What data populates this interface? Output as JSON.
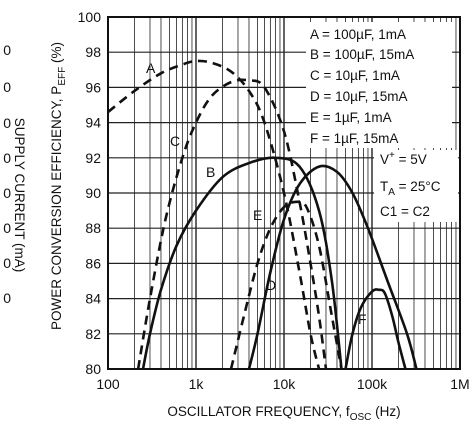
{
  "chart_data": {
    "type": "line",
    "xscale": "log",
    "xlim": [
      100,
      1000000
    ],
    "ylim": [
      80,
      100
    ],
    "xlabel": {
      "main": "OSCILLATOR FREQUENCY, f",
      "sub": "OSC",
      "unit": " (Hz)"
    },
    "ylabel": {
      "main": "POWER CONVERSION EFFICIENCY, P",
      "sub": "EFF",
      "unit": " (%)"
    },
    "x_tick_labels": [
      "100",
      "1k",
      "10k",
      "100k",
      "1M"
    ],
    "y_tick_labels": [
      "80",
      "82",
      "84",
      "86",
      "88",
      "90",
      "92",
      "94",
      "96",
      "98",
      "100"
    ],
    "right_axis": {
      "label": "SUPPLY CURRENT (mA)",
      "tick_labels": [
        "0",
        "0",
        "0",
        "0",
        "0",
        "0",
        "0",
        "0"
      ]
    },
    "grid": true,
    "legend_position": "top-right",
    "legend": [
      "A = 100µF, 1mA",
      "B = 100µF, 15mA",
      "C = 10µF, 1mA",
      "D = 10µF, 15mA",
      "E = 1µF, 1mA",
      "F = 1µF, 15mA"
    ],
    "conditions": {
      "vplus": {
        "main": "V",
        "sup": "+",
        "rest": " = 5V"
      },
      "ta": {
        "main": "T",
        "sub": "A",
        "rest": " = 25°C"
      },
      "caps": "C1 = C2"
    },
    "series": [
      {
        "name": "A",
        "style": "dashed",
        "x": [
          100,
          200,
          400,
          700,
          1000,
          1500,
          2500,
          4000,
          6000,
          10000,
          15000,
          20000,
          25000
        ],
        "y": [
          94.6,
          95.8,
          96.8,
          97.3,
          97.5,
          97.4,
          96.9,
          95.8,
          94.0,
          90.0,
          85.5,
          82.0,
          80.0
        ]
      },
      {
        "name": "B",
        "style": "solid",
        "x": [
          250,
          300,
          400,
          600,
          1000,
          2000,
          4000,
          8000,
          15000,
          25000,
          35000,
          45000
        ],
        "y": [
          80.0,
          82.0,
          84.5,
          87.0,
          89.0,
          90.9,
          91.7,
          92.0,
          91.5,
          89.0,
          85.0,
          80.0
        ]
      },
      {
        "name": "C",
        "style": "dashed",
        "x": [
          220,
          300,
          450,
          700,
          1000,
          1500,
          2500,
          4000,
          6000,
          10000,
          15000,
          20000,
          25000,
          30000
        ],
        "y": [
          80.0,
          84.0,
          88.5,
          92.0,
          94.0,
          95.5,
          96.3,
          96.4,
          96.0,
          93.5,
          89.5,
          86.0,
          83.0,
          80.0
        ]
      },
      {
        "name": "D",
        "style": "solid",
        "x": [
          4000,
          5000,
          7000,
          10000,
          15000,
          25000,
          40000,
          60000,
          90000,
          150000,
          250000,
          320000
        ],
        "y": [
          80.0,
          82.0,
          85.5,
          88.5,
          90.5,
          91.5,
          91.2,
          90.0,
          88.0,
          85.0,
          82.0,
          80.0
        ]
      },
      {
        "name": "E",
        "style": "dashed",
        "x": [
          2500,
          3500,
          5000,
          7000,
          10000,
          14000,
          18000,
          25000,
          35000,
          45000
        ],
        "y": [
          80.0,
          83.0,
          86.0,
          88.0,
          89.2,
          89.5,
          89.2,
          87.0,
          83.0,
          80.0
        ]
      },
      {
        "name": "F",
        "style": "solid",
        "x": [
          50000,
          60000,
          75000,
          100000,
          120000,
          140000,
          170000,
          200000,
          240000
        ],
        "y": [
          80.0,
          82.0,
          83.5,
          84.4,
          84.5,
          84.3,
          83.0,
          81.5,
          80.0
        ]
      }
    ]
  }
}
